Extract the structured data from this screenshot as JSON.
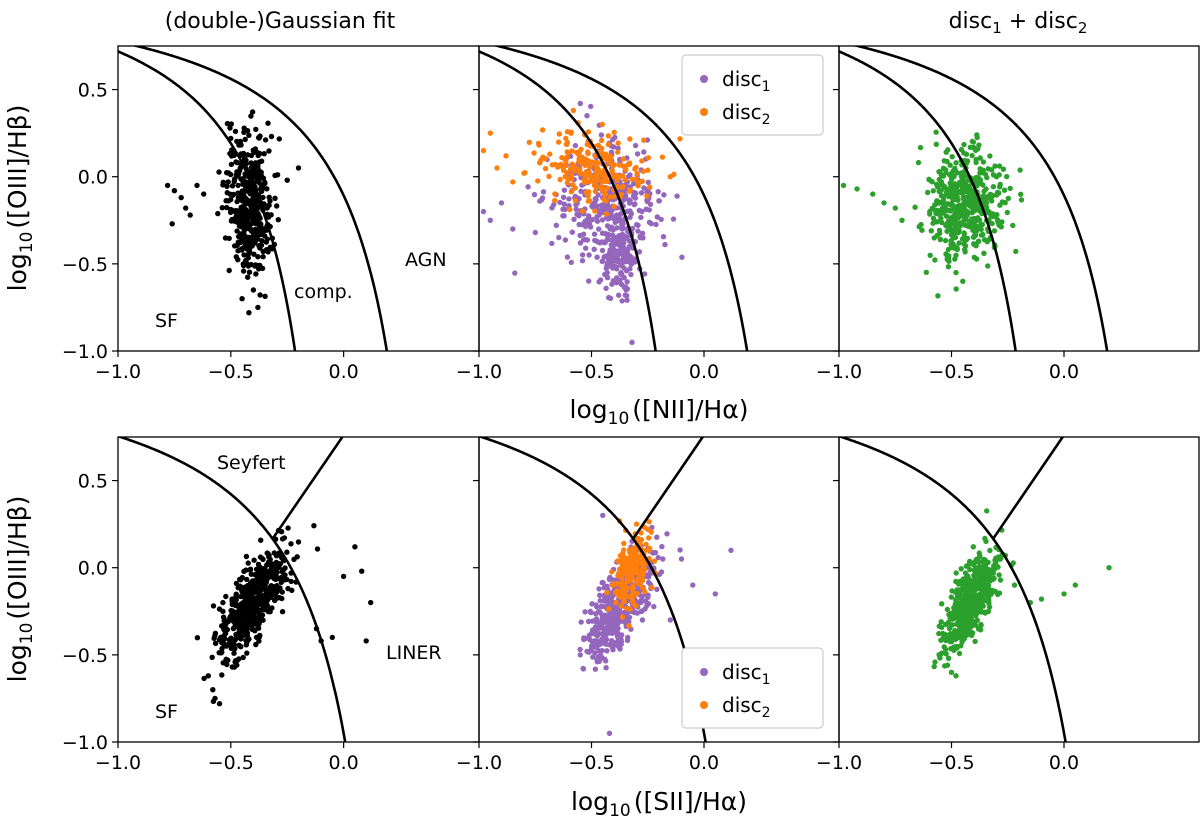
{
  "figure": {
    "col_titles": [
      "(double-)Gaussian fit",
      "",
      "disc"
    ],
    "col3_title_parts": {
      "a": "disc",
      "a_sub": "1",
      "plus": " + disc",
      "b_sub": "2"
    },
    "ylabel": {
      "prefix": "log",
      "sub": "10",
      "main": "([OIII]/Hβ)"
    },
    "xlabel_row1": {
      "prefix": "log",
      "sub": "10",
      "main": "([NII]/Hα)"
    },
    "xlabel_row2": {
      "prefix": "log",
      "sub": "10",
      "main": "([SII]/Hα)"
    },
    "xticks": [
      "−1.0",
      "−0.5",
      "0.0"
    ],
    "yticks": [
      "0.5",
      "0.0",
      "−0.5",
      "−1.0"
    ],
    "legend": {
      "disc1": "disc",
      "disc1_sub": "1",
      "disc2": "disc",
      "disc2_sub": "2"
    },
    "annotations_row1": {
      "sf": "SF",
      "comp": "comp.",
      "agn": "AGN"
    },
    "annotations_row2": {
      "sf": "SF",
      "seyfert": "Seyfert",
      "liner": "LINER"
    },
    "colors": {
      "black": "#000000",
      "disc1": "#9467bd",
      "disc2": "#ff7f0e",
      "combined": "#2ca02c"
    }
  },
  "chart_data": [
    {
      "type": "scatter",
      "panel": "row1-col1",
      "xlim": [
        -1.0,
        0.6
      ],
      "ylim": [
        -1.0,
        0.75
      ],
      "series": [
        {
          "name": "double-Gaussian fit",
          "color": "#000000",
          "cluster": {
            "cx": -0.42,
            "cy": -0.15,
            "sx": 0.05,
            "sy": 0.2,
            "corr": -0.2,
            "n": 420
          },
          "extra": [
            [
              -0.78,
              -0.05
            ],
            [
              -0.75,
              -0.08
            ],
            [
              -0.72,
              -0.12
            ],
            [
              -0.7,
              -0.18
            ],
            [
              -0.68,
              -0.22
            ],
            [
              -0.76,
              -0.27
            ],
            [
              -0.65,
              -0.05
            ],
            [
              -0.62,
              -0.1
            ],
            [
              -0.2,
              0.05
            ],
            [
              -0.25,
              -0.02
            ],
            [
              -0.38,
              -0.75
            ],
            [
              -0.42,
              -0.78
            ],
            [
              -0.45,
              -0.7
            ],
            [
              -0.4,
              -0.65
            ],
            [
              -0.5,
              0.22
            ]
          ]
        }
      ],
      "curves": [
        "kauffmann03",
        "kewley01"
      ]
    },
    {
      "type": "scatter",
      "panel": "row1-col2",
      "xlim": [
        -1.0,
        0.6
      ],
      "ylim": [
        -1.0,
        0.75
      ],
      "series": [
        {
          "name": "disc_1",
          "color": "#9467bd",
          "cluster": {
            "cx": -0.45,
            "cy": -0.15,
            "sx": 0.12,
            "sy": 0.15,
            "corr": 0.0,
            "n": 330
          },
          "arm": {
            "cx": -0.38,
            "cy": -0.45,
            "sx": 0.04,
            "sy": 0.12,
            "n": 160
          },
          "extra": [
            [
              -0.98,
              -0.2
            ],
            [
              -0.95,
              -0.25
            ],
            [
              -0.9,
              -0.15
            ],
            [
              -0.85,
              -0.3
            ],
            [
              -0.75,
              -0.32
            ],
            [
              -0.32,
              -0.95
            ],
            [
              -0.35,
              -0.68
            ],
            [
              -0.55,
              0.42
            ],
            [
              -0.52,
              0.35
            ]
          ]
        },
        {
          "name": "disc_2",
          "color": "#ff7f0e",
          "cluster": {
            "cx": -0.5,
            "cy": 0.05,
            "sx": 0.12,
            "sy": 0.1,
            "corr": -0.3,
            "n": 230
          },
          "extra": [
            [
              -0.95,
              0.25
            ],
            [
              -0.92,
              0.05
            ],
            [
              -0.88,
              0.12
            ],
            [
              -0.85,
              -0.03
            ],
            [
              -0.8,
              0.02
            ],
            [
              -0.15,
              0.0
            ],
            [
              -0.98,
              0.15
            ]
          ]
        }
      ],
      "curves": [
        "kauffmann03",
        "kewley01"
      ]
    },
    {
      "type": "scatter",
      "panel": "row1-col3",
      "xlim": [
        -1.0,
        0.6
      ],
      "ylim": [
        -1.0,
        0.75
      ],
      "series": [
        {
          "name": "disc_1 + disc_2",
          "color": "#2ca02c",
          "cluster": {
            "cx": -0.44,
            "cy": -0.15,
            "sx": 0.08,
            "sy": 0.15,
            "corr": 0.05,
            "n": 470
          },
          "extra": [
            [
              -0.98,
              -0.05
            ],
            [
              -0.92,
              -0.07
            ],
            [
              -0.85,
              -0.1
            ],
            [
              -0.8,
              -0.15
            ],
            [
              -0.75,
              -0.18
            ],
            [
              -0.72,
              -0.25
            ],
            [
              -0.3,
              0.0
            ],
            [
              -0.45,
              -0.6
            ],
            [
              -0.48,
              -0.55
            ]
          ]
        }
      ],
      "curves": [
        "kauffmann03",
        "kewley01"
      ]
    },
    {
      "type": "scatter",
      "panel": "row2-col1",
      "xlim": [
        -1.0,
        0.6
      ],
      "ylim": [
        -1.0,
        0.75
      ],
      "series": [
        {
          "name": "double-Gaussian fit",
          "color": "#000000",
          "cluster": {
            "cx": -0.4,
            "cy": -0.2,
            "sx": 0.08,
            "sy": 0.16,
            "corr": 0.75,
            "n": 540
          },
          "extra": [
            [
              -0.6,
              -0.62
            ],
            [
              -0.58,
              -0.7
            ],
            [
              -0.57,
              -0.75
            ],
            [
              -0.55,
              -0.78
            ],
            [
              0.05,
              0.12
            ],
            [
              0.08,
              -0.02
            ],
            [
              0.12,
              -0.2
            ],
            [
              0.1,
              -0.42
            ],
            [
              0.0,
              -0.05
            ],
            [
              -0.05,
              -0.4
            ],
            [
              -0.1,
              -0.42
            ],
            [
              -0.12,
              -0.35
            ]
          ]
        }
      ],
      "curves": [
        "kewley01_sii",
        "seyfert_liner"
      ]
    },
    {
      "type": "scatter",
      "panel": "row2-col2",
      "xlim": [
        -1.0,
        0.6
      ],
      "ylim": [
        -1.0,
        0.75
      ],
      "series": [
        {
          "name": "disc_1",
          "color": "#9467bd",
          "cluster": {
            "cx": -0.38,
            "cy": -0.22,
            "sx": 0.07,
            "sy": 0.15,
            "corr": 0.65,
            "n": 460
          },
          "extra": [
            [
              -0.55,
              -0.5
            ],
            [
              -0.52,
              -0.48
            ],
            [
              -0.5,
              -0.45
            ],
            [
              -0.42,
              -0.95
            ],
            [
              -0.45,
              0.3
            ],
            [
              -0.1,
              0.05
            ],
            [
              -0.05,
              -0.1
            ],
            [
              0.05,
              -0.15
            ],
            [
              0.12,
              0.1
            ],
            [
              -0.15,
              -0.3
            ]
          ]
        },
        {
          "name": "disc_2",
          "color": "#ff7f0e",
          "cluster": {
            "cx": -0.32,
            "cy": -0.02,
            "sx": 0.04,
            "sy": 0.1,
            "corr": 0.4,
            "n": 190
          },
          "extra": [
            [
              -0.3,
              0.25
            ],
            [
              -0.28,
              0.2
            ],
            [
              -0.25,
              0.22
            ]
          ]
        }
      ],
      "curves": [
        "kewley01_sii",
        "seyfert_liner"
      ]
    },
    {
      "type": "scatter",
      "panel": "row2-col3",
      "xlim": [
        -1.0,
        0.6
      ],
      "ylim": [
        -1.0,
        0.75
      ],
      "series": [
        {
          "name": "disc_1 + disc_2",
          "color": "#2ca02c",
          "cluster": {
            "cx": -0.42,
            "cy": -0.2,
            "sx": 0.06,
            "sy": 0.14,
            "corr": 0.7,
            "n": 520
          },
          "extra": [
            [
              -0.5,
              -0.6
            ],
            [
              -0.48,
              -0.62
            ],
            [
              -0.22,
              -0.1
            ],
            [
              -0.15,
              -0.2
            ],
            [
              -0.1,
              -0.18
            ],
            [
              0.05,
              -0.1
            ],
            [
              0.0,
              -0.15
            ],
            [
              0.2,
              0.0
            ],
            [
              -0.55,
              -0.5
            ]
          ]
        }
      ],
      "curves": [
        "kewley01_sii",
        "seyfert_liner"
      ]
    }
  ]
}
